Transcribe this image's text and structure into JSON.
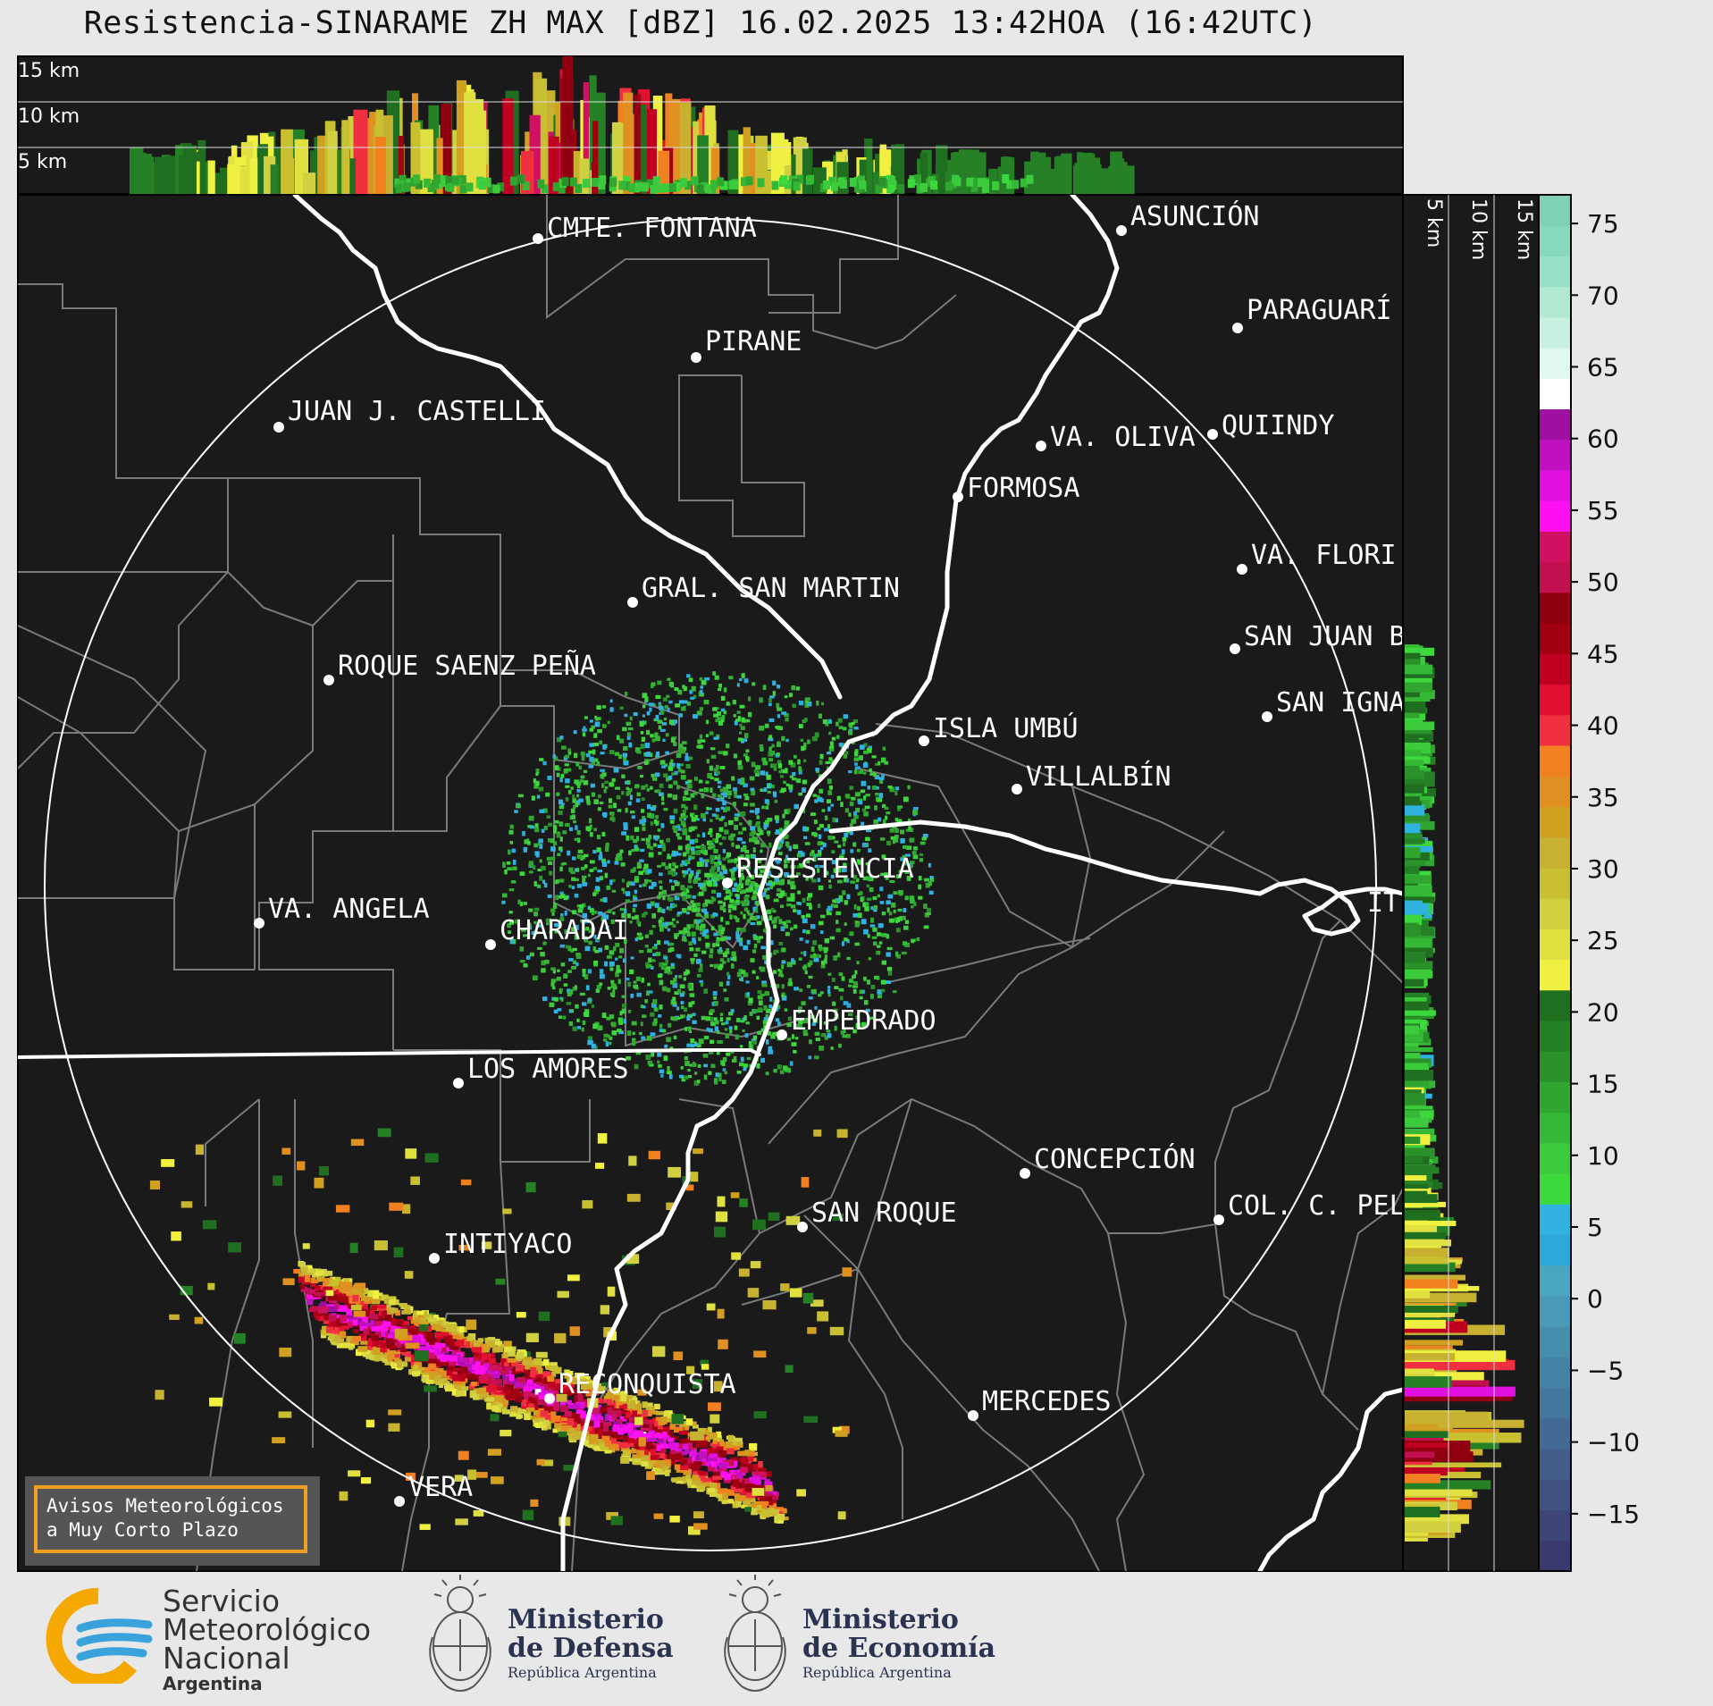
{
  "title": "Resistencia-SINARAME ZH MAX [dBZ] 16.02.2025 13:42HOA (16:42UTC)",
  "top_panel": {
    "labels": [
      "15 km",
      "10 km",
      "5 km"
    ]
  },
  "side_panel": {
    "labels": [
      "5 km",
      "10 km",
      "15 km"
    ]
  },
  "colorbar": {
    "ticks": [
      "75",
      "70",
      "65",
      "60",
      "55",
      "50",
      "45",
      "40",
      "35",
      "30",
      "25",
      "20",
      "15",
      "10",
      "5",
      "0",
      "−5",
      "−10",
      "−15"
    ]
  },
  "cities": [
    {
      "name": "CMTE. FONTANA"
    },
    {
      "name": "ASUNCIÓN"
    },
    {
      "name": "PIRANE"
    },
    {
      "name": "PARAGUARÍ"
    },
    {
      "name": "JUAN J. CASTELLI"
    },
    {
      "name": "VA. OLIVA"
    },
    {
      "name": "QUIINDY"
    },
    {
      "name": "FORMOSA"
    },
    {
      "name": "VA. FLORI"
    },
    {
      "name": "GRAL. SAN MARTIN"
    },
    {
      "name": "SAN JUAN B"
    },
    {
      "name": "ROQUE SAENZ PEÑA"
    },
    {
      "name": "SAN IGNA"
    },
    {
      "name": "ISLA UMBÚ"
    },
    {
      "name": "VILLALBÍN"
    },
    {
      "name": "RESISTENCIA"
    },
    {
      "name": "VA. ANGELA"
    },
    {
      "name": "CHARADAI"
    },
    {
      "name": "IT"
    },
    {
      "name": "EMPEDRADO"
    },
    {
      "name": "LOS AMORES"
    },
    {
      "name": "CONCEPCIÓN"
    },
    {
      "name": "SAN ROQUE"
    },
    {
      "name": "COL. C. PEL"
    },
    {
      "name": "INTIYACO"
    },
    {
      "name": "RECONQUISTA"
    },
    {
      "name": "MERCEDES"
    },
    {
      "name": "VERA"
    }
  ],
  "alert": {
    "line1": "Avisos Meteorológicos",
    "line2": "a Muy Corto Plazo"
  },
  "footer": {
    "smn": {
      "line1": "Servicio",
      "line2": "Meteorológico",
      "line3": "Nacional",
      "line4": "Argentina"
    },
    "defensa": {
      "line1": "Ministerio",
      "line2": "de Defensa",
      "line3": "República Argentina"
    },
    "economia": {
      "line1": "Ministerio",
      "line2": "de Economía",
      "line3": "República Argentina"
    }
  }
}
